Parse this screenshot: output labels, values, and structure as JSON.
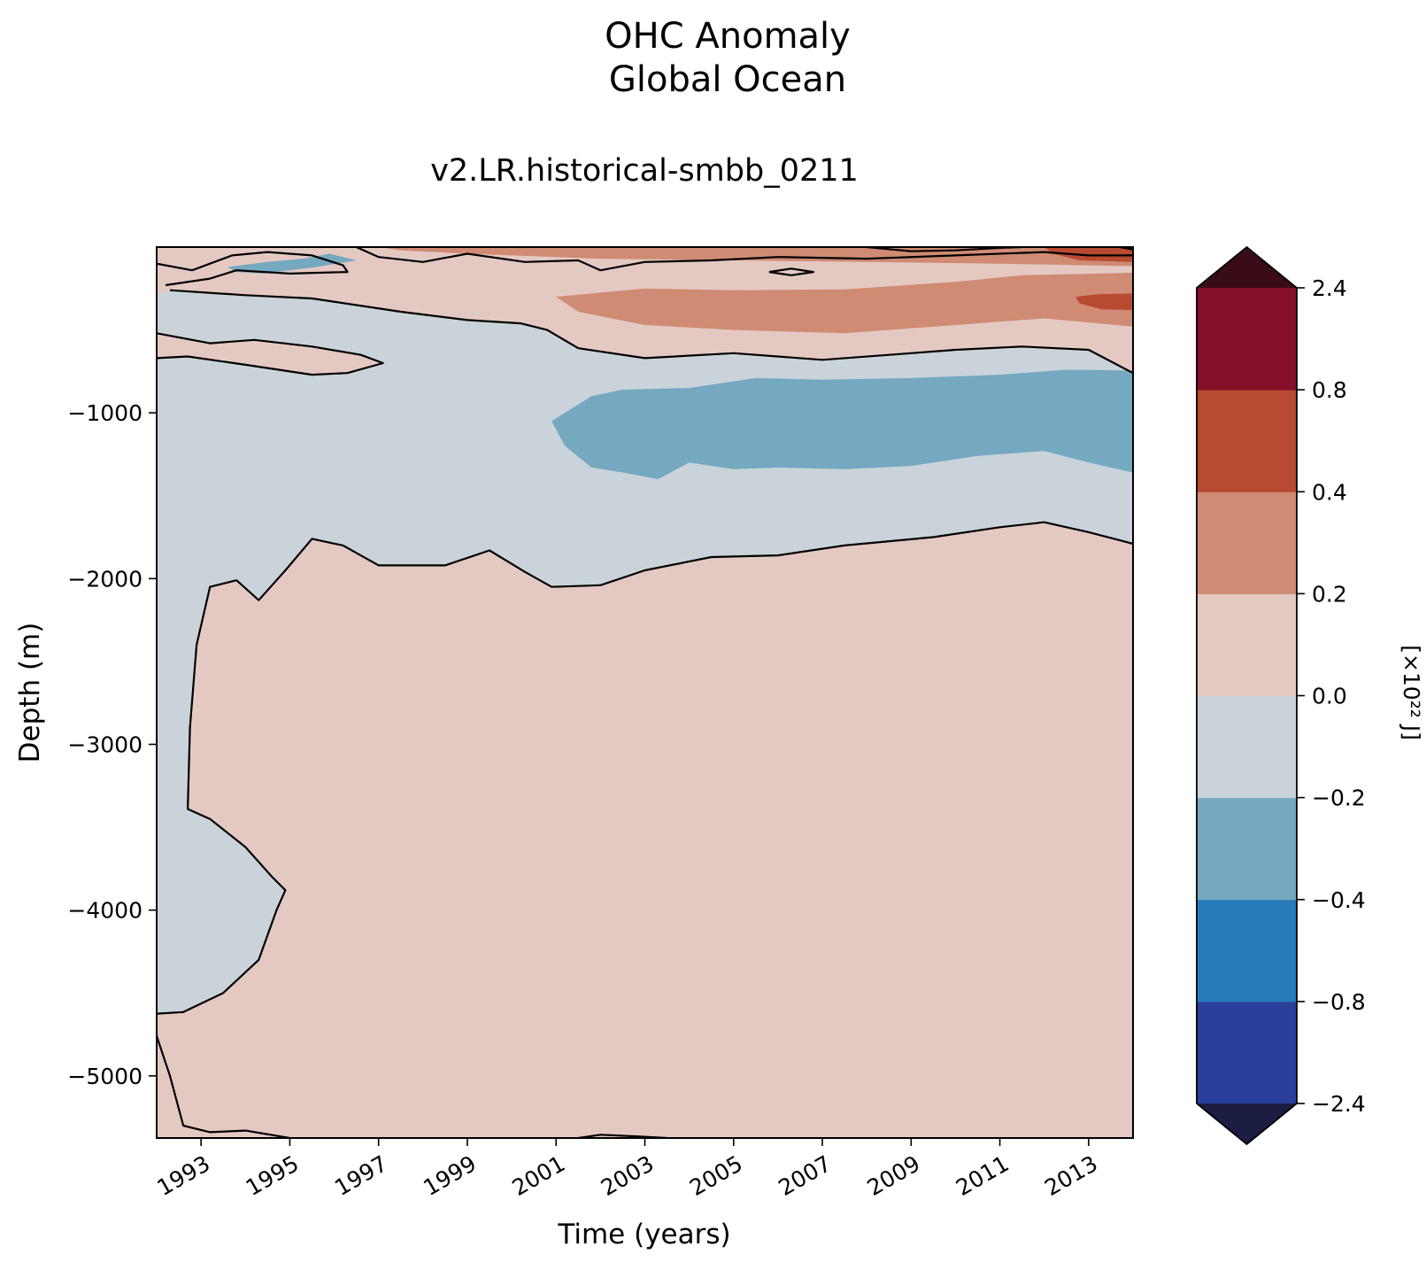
{
  "chart_data": {
    "type": "heatmap",
    "title_line1": "OHC Anomaly",
    "title_line2": "Global Ocean",
    "subtitle": "v2.LR.historical-smbb_0211",
    "xlabel": "Time (years)",
    "ylabel": "Depth (m)",
    "x_range": [
      1992.0,
      2014.0
    ],
    "x_ticks": [
      "1993",
      "1995",
      "1997",
      "1999",
      "2001",
      "2003",
      "2005",
      "2007",
      "2009",
      "2011",
      "2013"
    ],
    "y_range": [
      -5375,
      0
    ],
    "y_ticks": [
      -1000,
      -2000,
      -3000,
      -4000,
      -5000
    ],
    "y_tick_labels": [
      "−1000",
      "−2000",
      "−3000",
      "−4000",
      "−5000"
    ],
    "colorbar": {
      "label": "[×10²² J]",
      "levels": [
        -2.4,
        -0.8,
        -0.4,
        -0.2,
        0.0,
        0.2,
        0.4,
        0.8,
        2.4
      ],
      "level_labels": [
        "−2.4",
        "−0.8",
        "−0.4",
        "−0.2",
        "0.0",
        "0.2",
        "0.4",
        "0.8",
        "2.4"
      ],
      "colors": [
        "#2a3e9b",
        "#277bba",
        "#74a9bf",
        "#c9d3d9",
        "#e4c9c3",
        "#cf8b73",
        "#b84a31",
        "#860f29"
      ],
      "under_color": "#1b1d43",
      "over_color": "#3a0c17",
      "extend": "both"
    },
    "contour_level": 0.0,
    "regions": [
      {
        "class": -0.1,
        "note": "negative anomaly, deep western region",
        "outline": [
          [
            1992.0,
            -4625
          ],
          [
            1992.6,
            -4615
          ],
          [
            1993.5,
            -4500
          ],
          [
            1994.3,
            -4300
          ],
          [
            1994.7,
            -4000
          ],
          [
            1994.9,
            -3880
          ],
          [
            1994.6,
            -3800
          ],
          [
            1994.0,
            -3620
          ],
          [
            1993.2,
            -3450
          ],
          [
            1992.7,
            -3390
          ],
          [
            1992.75,
            -2900
          ],
          [
            1992.9,
            -2400
          ],
          [
            1993.2,
            -2050
          ],
          [
            1993.8,
            -2010
          ],
          [
            1994.3,
            -2130
          ],
          [
            1994.9,
            -1950
          ],
          [
            1995.5,
            -1760
          ],
          [
            1996.2,
            -1800
          ],
          [
            1997.0,
            -1920
          ],
          [
            1998.5,
            -1920
          ],
          [
            1999.5,
            -1830
          ],
          [
            2000.3,
            -1960
          ],
          [
            2000.9,
            -2050
          ],
          [
            2002.0,
            -2040
          ],
          [
            2003.0,
            -1950
          ],
          [
            2004.5,
            -1870
          ],
          [
            2006.0,
            -1860
          ],
          [
            2007.5,
            -1800
          ],
          [
            2009.5,
            -1750
          ],
          [
            2011.0,
            -1690
          ],
          [
            2012.0,
            -1660
          ],
          [
            2013.0,
            -1720
          ],
          [
            2014.0,
            -1790
          ],
          [
            2014.0,
            -760
          ],
          [
            2013.0,
            -620
          ],
          [
            2011.5,
            -600
          ],
          [
            2010.0,
            -620
          ],
          [
            2008.5,
            -650
          ],
          [
            2007.0,
            -680
          ],
          [
            2005.0,
            -640
          ],
          [
            2003.0,
            -670
          ],
          [
            2001.5,
            -610
          ],
          [
            2000.8,
            -500
          ],
          [
            2000.2,
            -460
          ],
          [
            1999.0,
            -440
          ],
          [
            1997.5,
            -390
          ],
          [
            1995.5,
            -310
          ],
          [
            1994.0,
            -290
          ],
          [
            1992.3,
            -260
          ],
          [
            1992.0,
            -290
          ]
        ]
      },
      {
        "class": 0.3,
        "note": "positive anomaly band below 250 m",
        "outline": [
          [
            2001.0,
            -300
          ],
          [
            2003.0,
            -250
          ],
          [
            2005.0,
            -260
          ],
          [
            2007.5,
            -255
          ],
          [
            2010.0,
            -210
          ],
          [
            2011.5,
            -170
          ],
          [
            2014.0,
            -155
          ],
          [
            2014.0,
            -480
          ],
          [
            2012.0,
            -430
          ],
          [
            2010.0,
            -470
          ],
          [
            2007.5,
            -520
          ],
          [
            2005.0,
            -500
          ],
          [
            2003.0,
            -470
          ],
          [
            2001.5,
            -390
          ]
        ]
      },
      {
        "class": 0.6,
        "note": "strong positive anomaly near 2013, ~300 m",
        "outline": [
          [
            2012.7,
            -300
          ],
          [
            2013.2,
            -285
          ],
          [
            2014.0,
            -280
          ],
          [
            2014.0,
            -380
          ],
          [
            2013.3,
            -375
          ],
          [
            2012.8,
            -340
          ]
        ]
      },
      {
        "class": 0.3,
        "note": "positive anomaly near the surface",
        "outline": [
          [
            1997.0,
            0
          ],
          [
            2014.0,
            0
          ],
          [
            2014.0,
            -115
          ],
          [
            2011.0,
            -100
          ],
          [
            2008.0,
            -90
          ],
          [
            2005.0,
            -80
          ],
          [
            2002.0,
            -70
          ],
          [
            1999.0,
            -40
          ],
          [
            1997.5,
            -20
          ]
        ]
      },
      {
        "class": 0.6,
        "note": "strong positive anomaly at the surface, late period",
        "outline": [
          [
            2012.0,
            0
          ],
          [
            2014.0,
            0
          ],
          [
            2014.0,
            -90
          ],
          [
            2012.8,
            -80
          ],
          [
            2012.2,
            -40
          ]
        ]
      },
      {
        "class": -0.3,
        "note": "negative anomaly, 750–1400 m",
        "outline": [
          [
            2001.8,
            -900
          ],
          [
            2002.5,
            -860
          ],
          [
            2004.0,
            -850
          ],
          [
            2005.5,
            -790
          ],
          [
            2007.0,
            -800
          ],
          [
            2009.0,
            -790
          ],
          [
            2011.0,
            -770
          ],
          [
            2012.5,
            -740
          ],
          [
            2014.0,
            -745
          ],
          [
            2014.0,
            -1360
          ],
          [
            2013.0,
            -1300
          ],
          [
            2012.0,
            -1230
          ],
          [
            2010.5,
            -1260
          ],
          [
            2009.0,
            -1320
          ],
          [
            2007.5,
            -1340
          ],
          [
            2006.0,
            -1330
          ],
          [
            2005.0,
            -1340
          ],
          [
            2004.0,
            -1300
          ],
          [
            2003.3,
            -1400
          ],
          [
            2002.5,
            -1360
          ],
          [
            2001.8,
            -1330
          ],
          [
            2001.2,
            -1200
          ],
          [
            2000.9,
            -1050
          ]
        ]
      },
      {
        "class": -0.3,
        "note": "small negative anomaly near surface, 1994–1996",
        "outline": [
          [
            1993.6,
            -120
          ],
          [
            1994.5,
            -90
          ],
          [
            1995.3,
            -70
          ],
          [
            1995.9,
            -40
          ],
          [
            1996.5,
            -80
          ],
          [
            1995.6,
            -120
          ],
          [
            1994.4,
            -160
          ],
          [
            1993.8,
            -150
          ]
        ]
      },
      {
        "class": 0.1,
        "note": "positive patch at 500–700 m, 1992–1997",
        "outline": [
          [
            1992.0,
            -520
          ],
          [
            1993.2,
            -580
          ],
          [
            1994.2,
            -560
          ],
          [
            1995.5,
            -600
          ],
          [
            1996.6,
            -650
          ],
          [
            1997.1,
            -700
          ],
          [
            1996.3,
            -760
          ],
          [
            1995.5,
            -770
          ],
          [
            1994.0,
            -710
          ],
          [
            1992.7,
            -660
          ],
          [
            1992.0,
            -670
          ]
        ]
      }
    ],
    "contours": [
      [
        [
          1992.0,
          -4625
        ],
        [
          1992.6,
          -4615
        ],
        [
          1993.5,
          -4500
        ],
        [
          1994.3,
          -4300
        ],
        [
          1994.7,
          -4000
        ],
        [
          1994.9,
          -3880
        ],
        [
          1994.6,
          -3800
        ],
        [
          1994.0,
          -3620
        ],
        [
          1993.2,
          -3450
        ],
        [
          1992.7,
          -3390
        ],
        [
          1992.75,
          -2900
        ],
        [
          1992.9,
          -2400
        ],
        [
          1993.2,
          -2050
        ],
        [
          1993.8,
          -2010
        ],
        [
          1994.3,
          -2130
        ],
        [
          1994.9,
          -1950
        ],
        [
          1995.5,
          -1760
        ],
        [
          1996.2,
          -1800
        ],
        [
          1997.0,
          -1920
        ],
        [
          1998.5,
          -1920
        ],
        [
          1999.5,
          -1830
        ],
        [
          2000.3,
          -1960
        ],
        [
          2000.9,
          -2050
        ],
        [
          2002.0,
          -2040
        ],
        [
          2003.0,
          -1950
        ],
        [
          2004.5,
          -1870
        ],
        [
          2006.0,
          -1860
        ],
        [
          2007.5,
          -1800
        ],
        [
          2009.5,
          -1750
        ],
        [
          2011.0,
          -1690
        ],
        [
          2012.0,
          -1660
        ],
        [
          2013.0,
          -1720
        ],
        [
          2014.0,
          -1790
        ]
      ],
      [
        [
          2014.0,
          -760
        ],
        [
          2013.0,
          -620
        ],
        [
          2011.5,
          -600
        ],
        [
          2010.0,
          -620
        ],
        [
          2008.5,
          -650
        ],
        [
          2007.0,
          -680
        ],
        [
          2005.0,
          -640
        ],
        [
          2003.0,
          -670
        ],
        [
          2001.5,
          -610
        ],
        [
          2000.8,
          -500
        ],
        [
          2000.2,
          -460
        ],
        [
          1999.0,
          -440
        ],
        [
          1997.5,
          -390
        ],
        [
          1995.5,
          -310
        ],
        [
          1994.0,
          -290
        ],
        [
          1992.3,
          -260
        ]
      ],
      [
        [
          1992.0,
          -520
        ],
        [
          1993.2,
          -580
        ],
        [
          1994.2,
          -560
        ],
        [
          1995.5,
          -600
        ],
        [
          1996.6,
          -650
        ],
        [
          1997.1,
          -700
        ],
        [
          1996.3,
          -760
        ],
        [
          1995.5,
          -770
        ],
        [
          1994.0,
          -710
        ],
        [
          1992.7,
          -660
        ],
        [
          1992.0,
          -670
        ]
      ],
      [
        [
          1992.0,
          -4760
        ],
        [
          1992.3,
          -5000
        ],
        [
          1992.6,
          -5300
        ],
        [
          1993.2,
          -5340
        ],
        [
          1994.0,
          -5330
        ],
        [
          1995.0,
          -5375
        ]
      ],
      [
        [
          2001.5,
          -5375
        ],
        [
          2002.0,
          -5355
        ],
        [
          2002.8,
          -5365
        ],
        [
          2003.5,
          -5375
        ]
      ],
      [
        [
          1992.0,
          -100
        ],
        [
          1992.8,
          -140
        ],
        [
          1993.7,
          -50
        ],
        [
          1994.5,
          -30
        ],
        [
          1995.5,
          -50
        ],
        [
          1996.2,
          -110
        ],
        [
          1996.3,
          -150
        ],
        [
          1995.0,
          -160
        ],
        [
          1993.8,
          -140
        ],
        [
          1993.2,
          -190
        ],
        [
          1992.2,
          -230
        ]
      ],
      [
        [
          1996.5,
          0
        ],
        [
          1997.0,
          -60
        ],
        [
          1998.0,
          -90
        ],
        [
          1999.0,
          -40
        ],
        [
          2000.3,
          -90
        ],
        [
          2001.5,
          -80
        ],
        [
          2002.0,
          -140
        ],
        [
          2003.0,
          -90
        ],
        [
          2004.5,
          -80
        ],
        [
          2006.0,
          -60
        ],
        [
          2008.0,
          -70
        ],
        [
          2010.0,
          -50
        ],
        [
          2012.0,
          -30
        ],
        [
          2013.0,
          -50
        ],
        [
          2014.0,
          -50
        ]
      ],
      [
        [
          2005.8,
          -150
        ],
        [
          2006.3,
          -130
        ],
        [
          2006.8,
          -150
        ],
        [
          2006.3,
          -170
        ],
        [
          2005.8,
          -150
        ]
      ],
      [
        [
          2008.0,
          0
        ],
        [
          2009.0,
          -25
        ],
        [
          2010.0,
          -20
        ],
        [
          2011.0,
          -5
        ],
        [
          2011.5,
          0
        ]
      ],
      [
        [
          2013.7,
          0
        ],
        [
          2014.0,
          -15
        ]
      ]
    ]
  }
}
